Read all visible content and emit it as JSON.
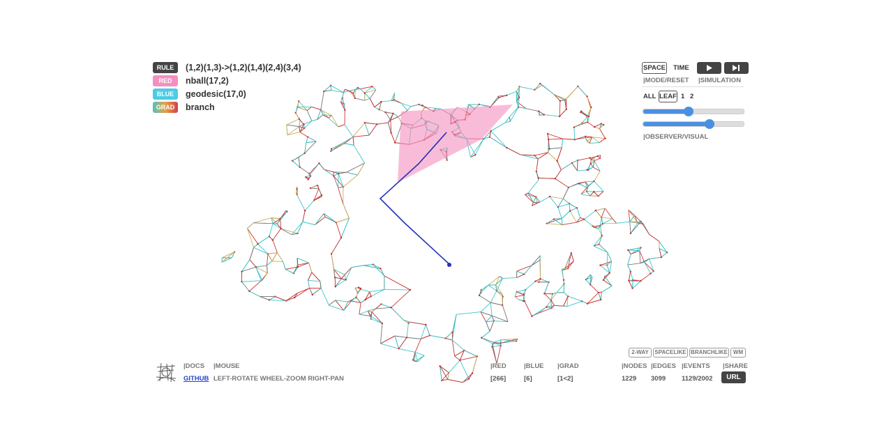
{
  "legend": [
    {
      "tag": "RULE",
      "text": "(1,2)(1,3)->(1,2)(1,4)(2,4)(3,4)"
    },
    {
      "tag": "RED",
      "text": "nball(17,2)"
    },
    {
      "tag": "BLUE",
      "text": "geodesic(17,0)"
    },
    {
      "tag": "GRAD",
      "text": "branch"
    }
  ],
  "controls": {
    "space": "SPACE",
    "time": "TIME",
    "mode_reset": "|MODE/RESET",
    "simulation": "|SIMULATION",
    "all": "ALL",
    "leaf": "LEAF",
    "one": "1",
    "two": "2",
    "observer_visual": "|OBSERVER/VISUAL"
  },
  "toggles": [
    "2-WAY",
    "SPACELIKE",
    "BRANCHLIKE",
    "WM"
  ],
  "footer": {
    "docs": "|DOCS",
    "mouse": "|MOUSE",
    "github": "GITHUB",
    "mouse_help": "LEFT-ROTATE WHEEL-ZOOM RIGHT-PAN",
    "stats": [
      {
        "label": "|RED",
        "value": "[266]"
      },
      {
        "label": "|BLUE",
        "value": "[6]"
      },
      {
        "label": "|GRAD",
        "value": "[1<2]"
      },
      {
        "label": "|NODES",
        "value": "1229"
      },
      {
        "label": "|EDGES",
        "value": "3099"
      },
      {
        "label": "|EVENTS",
        "value": "1129/2002"
      }
    ],
    "share": "|SHARE",
    "url": "URL"
  }
}
